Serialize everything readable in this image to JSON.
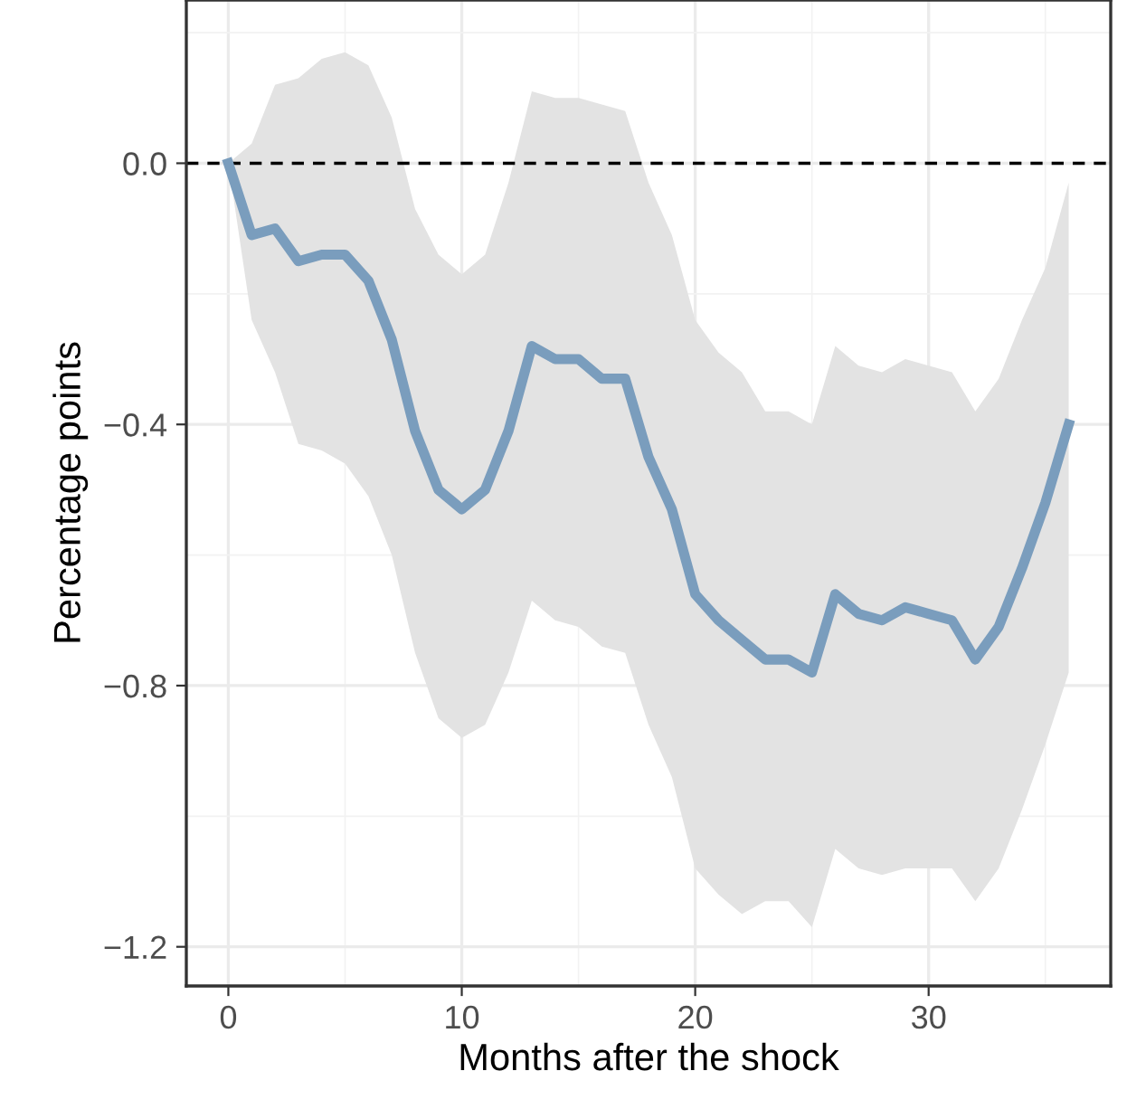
{
  "chart_data": {
    "type": "line",
    "xlabel": "Months after the shock",
    "ylabel": "Percentage points",
    "x": [
      0,
      1,
      2,
      3,
      4,
      5,
      6,
      7,
      8,
      9,
      10,
      11,
      12,
      13,
      14,
      15,
      16,
      17,
      18,
      19,
      20,
      21,
      22,
      23,
      24,
      25,
      26,
      27,
      28,
      29,
      30,
      31,
      32,
      33,
      34,
      35,
      36
    ],
    "series": [
      {
        "color": "#7a9dbd",
        "values": [
          0,
          -0.11,
          -0.1,
          -0.15,
          -0.14,
          -0.14,
          -0.18,
          -0.27,
          -0.41,
          -0.5,
          -0.53,
          -0.5,
          -0.41,
          -0.28,
          -0.3,
          -0.3,
          -0.33,
          -0.33,
          -0.45,
          -0.53,
          -0.66,
          -0.7,
          -0.73,
          -0.76,
          -0.76,
          -0.78,
          -0.66,
          -0.69,
          -0.7,
          -0.68,
          -0.69,
          -0.7,
          -0.76,
          -0.71,
          -0.62,
          -0.52,
          -0.4
        ],
        "upper": [
          0,
          0.03,
          0.12,
          0.13,
          0.16,
          0.17,
          0.15,
          0.07,
          -0.07,
          -0.14,
          -0.17,
          -0.14,
          -0.03,
          0.11,
          0.1,
          0.1,
          0.09,
          0.08,
          -0.03,
          -0.11,
          -0.24,
          -0.29,
          -0.32,
          -0.38,
          -0.38,
          -0.4,
          -0.28,
          -0.31,
          -0.32,
          -0.3,
          -0.31,
          -0.32,
          -0.38,
          -0.33,
          -0.24,
          -0.16,
          -0.03
        ],
        "lower": [
          0,
          -0.24,
          -0.32,
          -0.43,
          -0.44,
          -0.46,
          -0.51,
          -0.6,
          -0.75,
          -0.85,
          -0.88,
          -0.86,
          -0.78,
          -0.67,
          -0.7,
          -0.71,
          -0.74,
          -0.75,
          -0.86,
          -0.94,
          -1.08,
          -1.12,
          -1.15,
          -1.13,
          -1.13,
          -1.17,
          -1.05,
          -1.08,
          -1.09,
          -1.08,
          -1.08,
          -1.08,
          -1.13,
          -1.08,
          -0.99,
          -0.89,
          -0.78
        ]
      }
    ],
    "xlim": [
      -1.8,
      37.8
    ],
    "xticks": [
      0,
      10,
      20,
      30
    ],
    "ylim": [
      -1.26,
      0.25
    ],
    "yticks": [
      {
        "value": 0,
        "label": "0.0"
      },
      {
        "value": -0.4,
        "label": "−0.4"
      },
      {
        "value": -0.8,
        "label": "−0.8"
      },
      {
        "value": -1.2,
        "label": "−1.2"
      }
    ],
    "ref_lines": [
      {
        "axis": "y",
        "value": 0,
        "color": "#000000",
        "line_style": "dashed"
      }
    ],
    "grid": true,
    "legend": false
  }
}
